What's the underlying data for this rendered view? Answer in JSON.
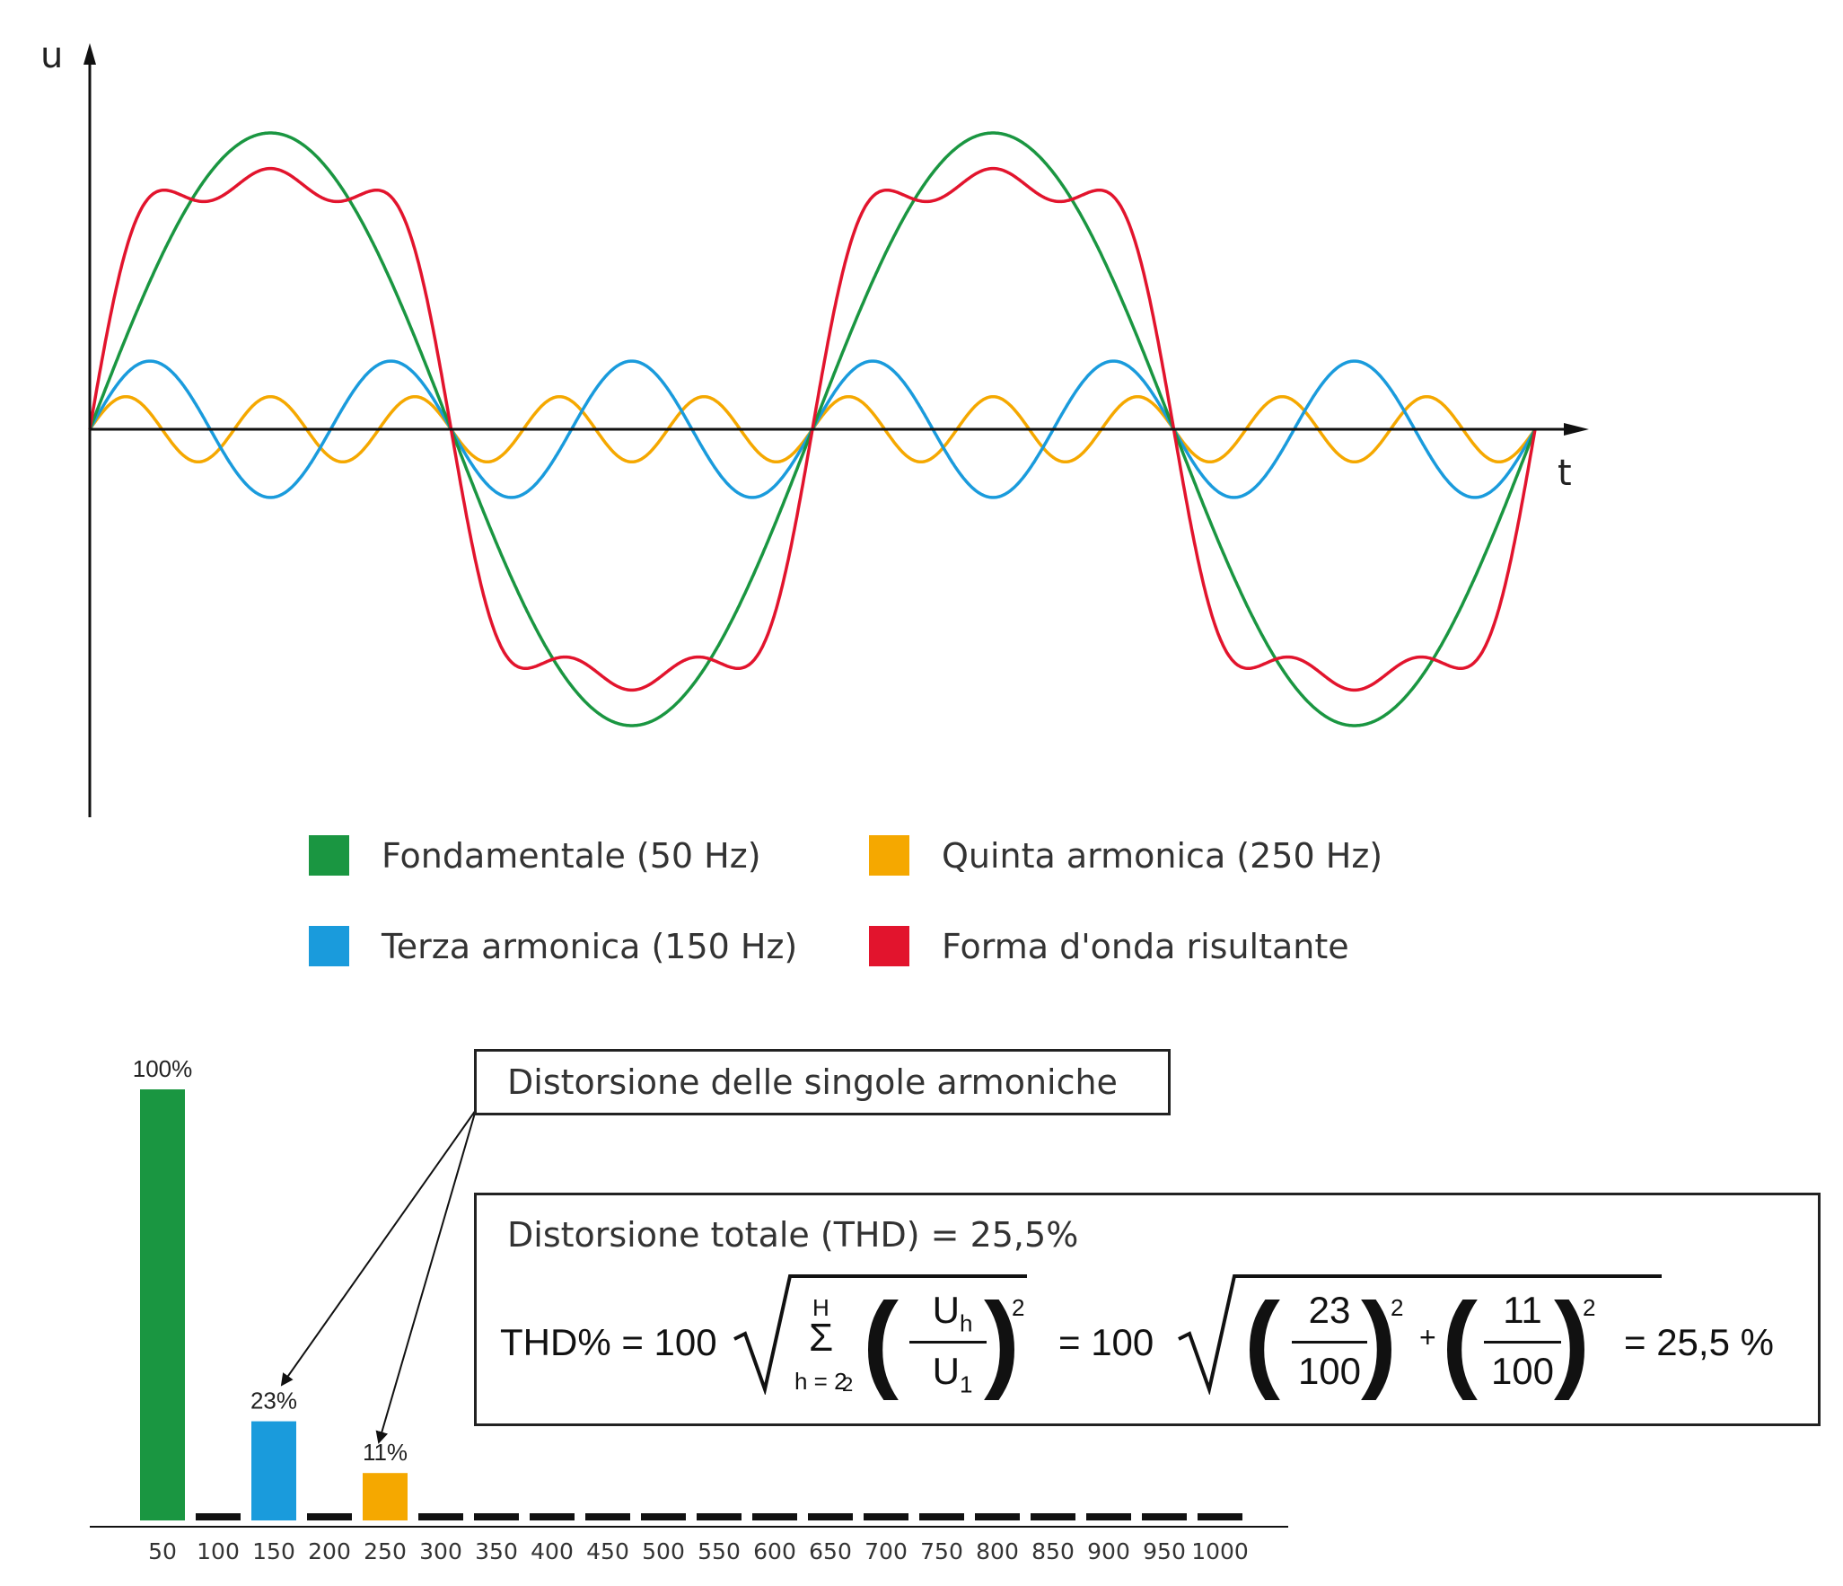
{
  "chart_data": [
    {
      "type": "line",
      "xlabel": "t",
      "ylabel": "u",
      "periods": 2,
      "grid": false,
      "series": [
        {
          "name": "Fondamentale (50 Hz)",
          "color": "#1a9641",
          "harmonic": 1,
          "amplitude": 1.0
        },
        {
          "name": "Terza armonica (150 Hz)",
          "color": "#1a9bdc",
          "harmonic": 3,
          "amplitude": 0.23
        },
        {
          "name": "Quinta armonica (250 Hz)",
          "color": "#f5a800",
          "harmonic": 5,
          "amplitude": 0.11
        },
        {
          "name": "Forma d'onda risultante",
          "color": "#e2142d",
          "harmonic": 0,
          "amplitude": 1.0
        }
      ]
    },
    {
      "type": "bar",
      "categories": [
        "50",
        "100",
        "150",
        "200",
        "250",
        "300",
        "350",
        "400",
        "450",
        "500",
        "550",
        "600",
        "650",
        "700",
        "750",
        "800",
        "850",
        "900",
        "950",
        "1000"
      ],
      "values": [
        100,
        0,
        23,
        0,
        11,
        0,
        0,
        0,
        0,
        0,
        0,
        0,
        0,
        0,
        0,
        0,
        0,
        0,
        0,
        0
      ],
      "bar_colors": {
        "50": "#1a9641",
        "150": "#1a9bdc",
        "250": "#f5a800",
        "other": "#111111"
      },
      "data_labels": {
        "50": "100%",
        "150": "23%",
        "250": "11%"
      },
      "ylim": [
        0,
        100
      ]
    }
  ],
  "legend": [
    {
      "label": "Fondamentale (50 Hz)",
      "color": "#1a9641"
    },
    {
      "label": "Quinta armonica (250 Hz)",
      "color": "#f5a800"
    },
    {
      "label": "Terza armonica (150 Hz)",
      "color": "#1a9bdc"
    },
    {
      "label": "Forma d'onda risultante",
      "color": "#e2142d"
    }
  ],
  "callout": {
    "label": "Distorsione delle singole armoniche"
  },
  "thd_box": {
    "title": "Distorsione totale (THD) = 25,5%",
    "lhs": "THD% = 100",
    "sum_top": "H",
    "sum_sym": "Σ",
    "sum_bottom": "h = 2",
    "num_sym": "U",
    "num_sub": "h",
    "den_sym": "U",
    "den_sub": "1",
    "exp": "2",
    "mid": "= 100",
    "frac1_num": "23",
    "frac1_den": "100",
    "plus": "+",
    "frac2_num": "11",
    "frac2_den": "100",
    "result": "= 25,5 %"
  }
}
